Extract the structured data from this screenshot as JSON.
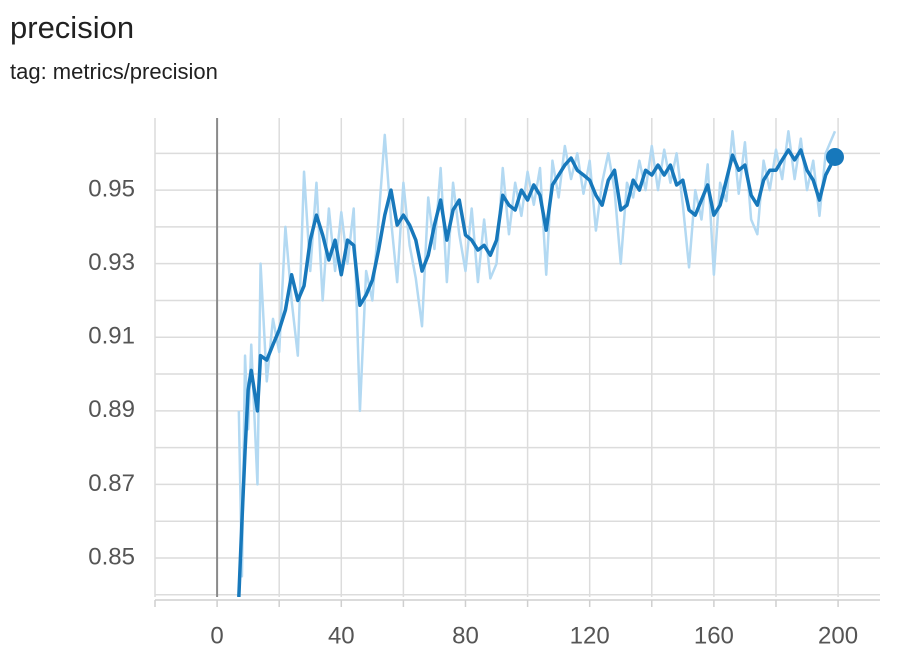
{
  "chart_data": {
    "type": "line",
    "title": "precision",
    "subtitle": "tag: metrics/precision",
    "x": [
      7,
      8,
      9,
      10,
      11,
      13,
      14,
      16,
      18,
      20,
      22,
      24,
      26,
      28,
      30,
      32,
      34,
      36,
      38,
      40,
      42,
      44,
      46,
      48,
      50,
      52,
      54,
      56,
      58,
      60,
      62,
      64,
      66,
      68,
      70,
      72,
      74,
      76,
      78,
      80,
      82,
      84,
      86,
      88,
      90,
      92,
      94,
      96,
      98,
      100,
      102,
      104,
      106,
      108,
      110,
      112,
      114,
      116,
      118,
      120,
      122,
      124,
      126,
      128,
      130,
      132,
      134,
      136,
      138,
      140,
      142,
      144,
      146,
      148,
      150,
      152,
      154,
      156,
      158,
      160,
      162,
      164,
      166,
      168,
      170,
      172,
      174,
      176,
      178,
      180,
      182,
      184,
      186,
      188,
      190,
      192,
      194,
      196,
      199
    ],
    "series": [
      {
        "color": "#b3d9f2",
        "values": [
          0.89,
          0.845,
          0.905,
          0.885,
          0.908,
          0.87,
          0.93,
          0.898,
          0.915,
          0.906,
          0.94,
          0.92,
          0.905,
          0.955,
          0.928,
          0.952,
          0.92,
          0.945,
          0.928,
          0.944,
          0.93,
          0.945,
          0.89,
          0.928,
          0.92,
          0.942,
          0.965,
          0.942,
          0.925,
          0.952,
          0.935,
          0.926,
          0.913,
          0.948,
          0.934,
          0.956,
          0.925,
          0.952,
          0.938,
          0.928,
          0.945,
          0.925,
          0.942,
          0.926,
          0.93,
          0.956,
          0.938,
          0.952,
          0.943,
          0.955,
          0.946,
          0.956,
          0.927,
          0.958,
          0.948,
          0.962,
          0.953,
          0.96,
          0.949,
          0.958,
          0.939,
          0.952,
          0.96,
          0.95,
          0.93,
          0.952,
          0.948,
          0.958,
          0.95,
          0.962,
          0.95,
          0.961,
          0.952,
          0.96,
          0.946,
          0.929,
          0.95,
          0.942,
          0.957,
          0.927,
          0.952,
          0.947,
          0.966,
          0.949,
          0.963,
          0.942,
          0.938,
          0.958,
          0.95,
          0.961,
          0.953,
          0.966,
          0.953,
          0.964,
          0.95,
          0.958,
          0.943,
          0.96,
          0.966
        ]
      },
      {
        "color": "#1778bb",
        "end_marker": true,
        "values": [
          0.8394,
          0.86,
          0.879,
          0.8957,
          0.901,
          0.89,
          0.905,
          0.9038,
          0.908,
          0.912,
          0.9174,
          0.927,
          0.92,
          0.924,
          0.9364,
          0.9432,
          0.9378,
          0.931,
          0.9364,
          0.927,
          0.9364,
          0.935,
          0.9187,
          0.9215,
          0.9255,
          0.9337,
          0.9432,
          0.95,
          0.9405,
          0.9432,
          0.9405,
          0.9364,
          0.928,
          0.9323,
          0.9405,
          0.9473,
          0.9364,
          0.9446,
          0.9473,
          0.9378,
          0.9364,
          0.9337,
          0.935,
          0.9323,
          0.9364,
          0.9486,
          0.9459,
          0.9446,
          0.95,
          0.9473,
          0.9514,
          0.9486,
          0.9391,
          0.9514,
          0.9541,
          0.9568,
          0.9587,
          0.9554,
          0.9541,
          0.9527,
          0.9486,
          0.9459,
          0.9527,
          0.9554,
          0.9446,
          0.9459,
          0.9527,
          0.95,
          0.9554,
          0.9541,
          0.9568,
          0.9541,
          0.9568,
          0.9514,
          0.9527,
          0.9446,
          0.9432,
          0.9473,
          0.9514,
          0.9432,
          0.9459,
          0.9527,
          0.9595,
          0.9554,
          0.9568,
          0.9486,
          0.9459,
          0.9527,
          0.9554,
          0.9554,
          0.9582,
          0.9609,
          0.9582,
          0.9609,
          0.9554,
          0.9527,
          0.9473,
          0.9541,
          0.959
        ]
      }
    ],
    "xlim": [
      -20,
      213.5
    ],
    "ylim": [
      0.8394,
      0.9696
    ],
    "xticks": [
      0,
      40,
      80,
      120,
      160,
      200
    ],
    "yticks": [
      0.85,
      0.87,
      0.89,
      0.91,
      0.93,
      0.95
    ],
    "xgrid": [
      -20,
      0,
      20,
      40,
      60,
      80,
      100,
      120,
      140,
      160,
      180,
      200
    ],
    "ygrid": [
      0.84,
      0.85,
      0.86,
      0.87,
      0.88,
      0.89,
      0.9,
      0.91,
      0.92,
      0.93,
      0.94,
      0.95,
      0.96
    ],
    "grid": true,
    "x_zero_line": true
  }
}
